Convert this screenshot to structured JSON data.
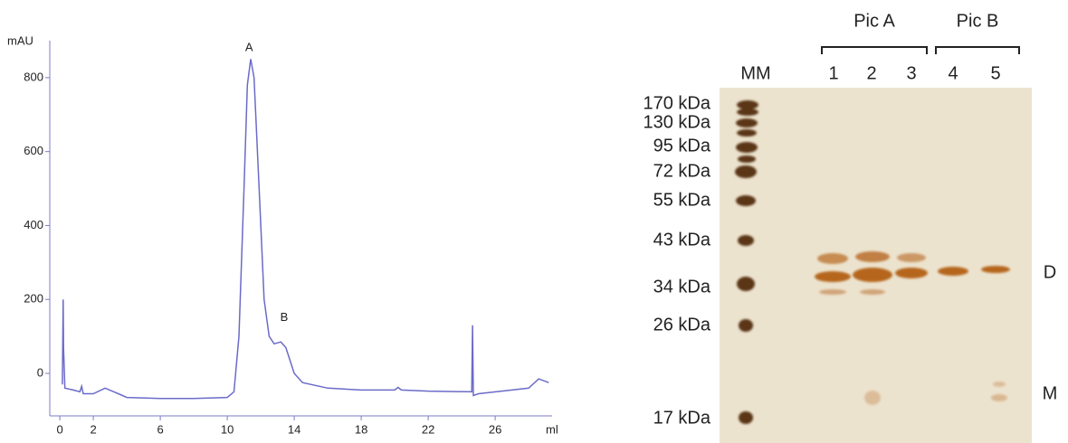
{
  "chart_data": {
    "type": "line",
    "y_label": "mAU",
    "x_label": "ml",
    "x": [
      0.15,
      0.2,
      0.22,
      0.3,
      0.8,
      1.2,
      1.3,
      1.4,
      2.0,
      2.7,
      3.5,
      4,
      6,
      8,
      10,
      10.4,
      10.7,
      11.0,
      11.2,
      11.4,
      11.6,
      11.9,
      12.2,
      12.5,
      12.8,
      13.2,
      13.5,
      14,
      14.5,
      16,
      18,
      20,
      20.2,
      20.4,
      22,
      24.6,
      24.65,
      24.7,
      25,
      27,
      28,
      28.6,
      29.2
    ],
    "y": [
      -30,
      200,
      70,
      -40,
      -45,
      -50,
      -35,
      -55,
      -55,
      -40,
      -55,
      -65,
      -68,
      -68,
      -65,
      -50,
      100,
      500,
      780,
      850,
      800,
      500,
      200,
      100,
      80,
      85,
      70,
      0,
      -25,
      -40,
      -45,
      -45,
      -38,
      -45,
      -48,
      -50,
      130,
      -60,
      -55,
      -45,
      -40,
      -15,
      -25
    ],
    "color": "#6b6bc8",
    "xlim": [
      -0.6,
      29.4
    ],
    "xticks": [
      0,
      2,
      6,
      10,
      14,
      18,
      22,
      26
    ],
    "ylim": [
      -115,
      900
    ],
    "yticks": [
      0,
      200,
      400,
      600,
      800
    ],
    "annotations": [
      {
        "text": "A",
        "x": 11.3,
        "y": 880
      },
      {
        "text": "B",
        "x": 13.4,
        "y": 150
      }
    ]
  },
  "gel": {
    "lanes": [
      "MM",
      "1",
      "2",
      "3",
      "4",
      "5"
    ],
    "groups": [
      "Pic A",
      "Pic B"
    ],
    "markers": [
      "170 kDa",
      "130 kDa",
      "95 kDa",
      "72 kDa",
      "55 kDa",
      "43 kDa",
      "34 kDa",
      "26 kDa",
      "17 kDa"
    ],
    "band_labels": [
      "D",
      "M"
    ]
  }
}
